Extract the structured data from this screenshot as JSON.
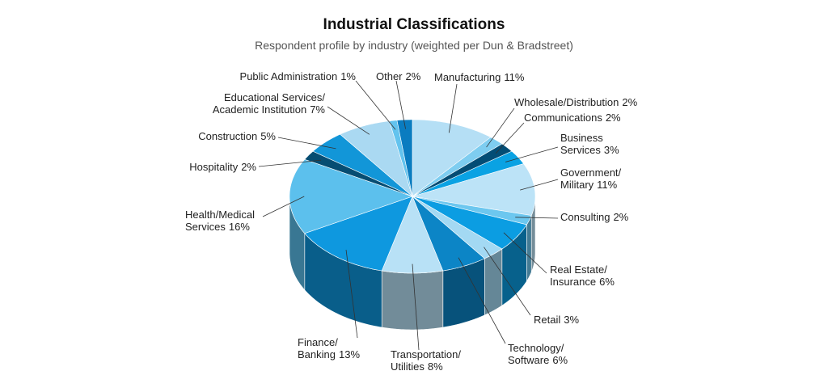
{
  "chart_data": {
    "type": "pie3d",
    "title": "Industrial Classifications",
    "subtitle": "Respondent profile by industry (weighted per Dun & Bradstreet)",
    "categories": [
      "Manufacturing",
      "Wholesale/Distribution",
      "Communications",
      "Business\nServices",
      "Government/\nMilitary",
      "Consulting",
      "Real Estate/\nInsurance",
      "Retail",
      "Technology/\nSoftware",
      "Transportation/\nUtilities",
      "Finance/\nBanking",
      "Health/Medical\nServices",
      "Hospitality",
      "Construction",
      "Educational Services/\nAcademic Institution",
      "Public Administration",
      "Other"
    ],
    "values": [
      11,
      2,
      2,
      3,
      11,
      2,
      6,
      3,
      6,
      8,
      13,
      16,
      2,
      5,
      7,
      1,
      2
    ],
    "value_labels": [
      "11%",
      "2%",
      "2%",
      "3%",
      "11%",
      "2%",
      "6%",
      "3%",
      "6%",
      "8%",
      "13%",
      "16%",
      "2%",
      "5%",
      "7%",
      "1%",
      "2%"
    ],
    "colors": [
      "#b5dff5",
      "#7ecdf0",
      "#034d75",
      "#0aa2e3",
      "#bce3f7",
      "#6cc7ef",
      "#0b9de2",
      "#a3d9f3",
      "#0c85c6",
      "#b8e1f6",
      "#0e98df",
      "#5cc0ed",
      "#064d72",
      "#1296d8",
      "#aad9f2",
      "#63c3ee",
      "#0a7cc0"
    ]
  }
}
